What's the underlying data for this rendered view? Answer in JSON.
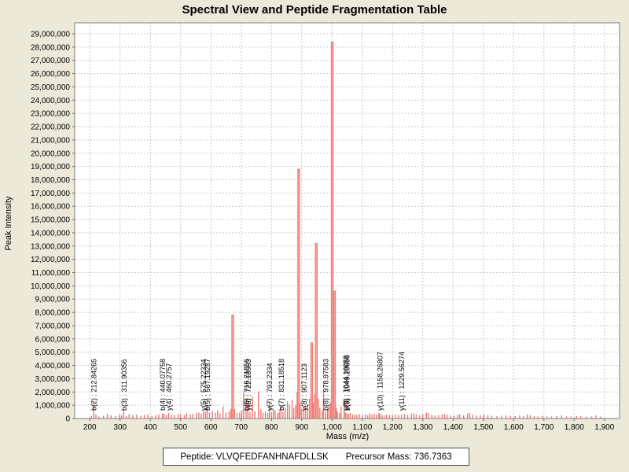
{
  "title": "Spectral View and Peptide Fragmentation Table",
  "footer": {
    "peptide": "Peptide: VLVQFEDFANHNAFDLLSK",
    "precursor": "Precursor Mass: 736.7363"
  },
  "chart_data": {
    "type": "bar",
    "title": "Spectral View and Peptide Fragmentation Table",
    "xlabel": "Mass (m/z)",
    "ylabel": "Peak Intensity",
    "xlim": [
      150,
      1950
    ],
    "ylim": [
      0,
      29830000
    ],
    "x_tick_min": 200,
    "x_tick_max": 1900,
    "x_tick_step": 100,
    "y_tick_min": 0,
    "y_tick_max": 29000000,
    "y_tick_step": 1000000,
    "grid": "dashed",
    "legend": "none",
    "colors": {
      "background": "#ece9d8",
      "plot_background": "#ffffff",
      "gridline": "#cccccc",
      "plot_border": "#808080",
      "peak": "#ee7068",
      "peak_big_fill": "#f6a29a",
      "tick": "#666666",
      "text": "#000000"
    },
    "annotations": [
      {
        "label": "b(2) : 212.84265",
        "mz": 212.84265
      },
      {
        "label": "b(3) : 311.90356",
        "mz": 311.90356
      },
      {
        "label": "b(4) : 440.07758",
        "mz": 440.07758
      },
      {
        "label": "y(4) : 460.2757",
        "mz": 460.2757
      },
      {
        "label": "y(5) : 575.22334",
        "mz": 575.22334
      },
      {
        "label": "b(5) : 587.19287",
        "mz": 587.19287
      },
      {
        "label": "b(6) : 716.21856",
        "mz": 716.21856
      },
      {
        "label": "y(6) : 722.18563",
        "mz": 722.18563
      },
      {
        "label": "y(7) : 793.2334",
        "mz": 793.2334
      },
      {
        "label": "b(7) : 831.18518",
        "mz": 831.18518
      },
      {
        "label": "y(8) : 907.1123",
        "mz": 907.1123
      },
      {
        "label": "b(8) : 978.97583",
        "mz": 978.97583
      },
      {
        "label": "y(9) : 1044.19058",
        "mz": 1044.19058
      },
      {
        "label": "b(9) : 1049.20656",
        "mz": 1049.20656
      },
      {
        "label": "y(10) : 1158.26807",
        "mz": 1158.26807
      },
      {
        "label": "y(11) : 1229.56274",
        "mz": 1229.56274
      }
    ],
    "peaks": [
      [
        205,
        200000
      ],
      [
        212.84265,
        1250000
      ],
      [
        220,
        300000
      ],
      [
        230,
        160000
      ],
      [
        245,
        210000
      ],
      [
        258,
        340000
      ],
      [
        270,
        240000
      ],
      [
        285,
        190000
      ],
      [
        298,
        290000
      ],
      [
        305,
        240000
      ],
      [
        311.90356,
        650000
      ],
      [
        320,
        200000
      ],
      [
        330,
        340000
      ],
      [
        342,
        240000
      ],
      [
        355,
        300000
      ],
      [
        368,
        210000
      ],
      [
        380,
        260000
      ],
      [
        392,
        300000
      ],
      [
        405,
        210000
      ],
      [
        418,
        260000
      ],
      [
        428,
        310000
      ],
      [
        440.07758,
        380000
      ],
      [
        445,
        330000
      ],
      [
        452,
        260000
      ],
      [
        460.2757,
        420000
      ],
      [
        470,
        290000
      ],
      [
        480,
        260000
      ],
      [
        492,
        340000
      ],
      [
        500,
        300000
      ],
      [
        512,
        260000
      ],
      [
        520,
        400000
      ],
      [
        532,
        310000
      ],
      [
        540,
        350000
      ],
      [
        552,
        400000
      ],
      [
        560,
        450000
      ],
      [
        568,
        360000
      ],
      [
        575.22334,
        550000
      ],
      [
        582,
        500000
      ],
      [
        587.19287,
        900000
      ],
      [
        595,
        460000
      ],
      [
        605,
        550000
      ],
      [
        615,
        420000
      ],
      [
        622,
        620000
      ],
      [
        630,
        400000
      ],
      [
        640,
        900000
      ],
      [
        650,
        450000
      ],
      [
        660,
        520000
      ],
      [
        666,
        700000
      ],
      [
        672,
        7800000
      ],
      [
        678,
        720000
      ],
      [
        686,
        420000
      ],
      [
        695,
        450000
      ],
      [
        702,
        600000
      ],
      [
        708,
        1950000
      ],
      [
        716.21856,
        1500000
      ],
      [
        722.18563,
        1100000
      ],
      [
        729,
        500000
      ],
      [
        737,
        1650000
      ],
      [
        745,
        550000
      ],
      [
        757,
        2050000
      ],
      [
        765,
        700000
      ],
      [
        772,
        450000
      ],
      [
        780,
        520000
      ],
      [
        788,
        420000
      ],
      [
        793.2334,
        1300000
      ],
      [
        800,
        470000
      ],
      [
        806,
        600000
      ],
      [
        812,
        640000
      ],
      [
        820,
        420000
      ],
      [
        826,
        520000
      ],
      [
        831.18518,
        950000
      ],
      [
        838,
        500000
      ],
      [
        845,
        820000
      ],
      [
        853,
        1300000
      ],
      [
        860,
        1050000
      ],
      [
        868,
        1400000
      ],
      [
        874,
        800000
      ],
      [
        880,
        1000000
      ],
      [
        885,
        2000000
      ],
      [
        890,
        18800000
      ],
      [
        895,
        1200000
      ],
      [
        900,
        720000
      ],
      [
        907.1123,
        800000
      ],
      [
        913,
        900000
      ],
      [
        920,
        1100000
      ],
      [
        926,
        1500000
      ],
      [
        933,
        5700000
      ],
      [
        938,
        1200000
      ],
      [
        943,
        1800000
      ],
      [
        948,
        13200000
      ],
      [
        955,
        1500000
      ],
      [
        960,
        820000
      ],
      [
        968,
        620000
      ],
      [
        972,
        2100000
      ],
      [
        978.97583,
        500000
      ],
      [
        985,
        700000
      ],
      [
        990,
        900000
      ],
      [
        995,
        1200000
      ],
      [
        1000.7,
        28400000
      ],
      [
        1005,
        1000000
      ],
      [
        1008.5,
        9600000
      ],
      [
        1014,
        800000
      ],
      [
        1018,
        520000
      ],
      [
        1025,
        420000
      ],
      [
        1030,
        900000
      ],
      [
        1040,
        1500000
      ],
      [
        1044.19058,
        450000
      ],
      [
        1049.20656,
        400000
      ],
      [
        1055,
        350000
      ],
      [
        1060,
        420000
      ],
      [
        1068,
        300000
      ],
      [
        1075,
        320000
      ],
      [
        1082,
        260000
      ],
      [
        1090,
        350000
      ],
      [
        1100,
        260000
      ],
      [
        1110,
        300000
      ],
      [
        1118,
        260000
      ],
      [
        1125,
        400000
      ],
      [
        1132,
        300000
      ],
      [
        1140,
        350000
      ],
      [
        1148,
        300000
      ],
      [
        1155,
        420000
      ],
      [
        1158.26807,
        350000
      ],
      [
        1165,
        260000
      ],
      [
        1172,
        240000
      ],
      [
        1180,
        300000
      ],
      [
        1190,
        260000
      ],
      [
        1200,
        240000
      ],
      [
        1210,
        300000
      ],
      [
        1220,
        260000
      ],
      [
        1229.56274,
        300000
      ],
      [
        1240,
        340000
      ],
      [
        1250,
        280000
      ],
      [
        1262,
        380000
      ],
      [
        1270,
        400000
      ],
      [
        1278,
        300000
      ],
      [
        1290,
        240000
      ],
      [
        1300,
        300000
      ],
      [
        1312,
        440000
      ],
      [
        1318,
        400000
      ],
      [
        1330,
        260000
      ],
      [
        1340,
        220000
      ],
      [
        1352,
        260000
      ],
      [
        1364,
        300000
      ],
      [
        1372,
        340000
      ],
      [
        1380,
        300000
      ],
      [
        1392,
        240000
      ],
      [
        1404,
        220000
      ],
      [
        1415,
        300000
      ],
      [
        1422,
        340000
      ],
      [
        1435,
        240000
      ],
      [
        1448,
        380000
      ],
      [
        1455,
        420000
      ],
      [
        1465,
        280000
      ],
      [
        1478,
        220000
      ],
      [
        1490,
        240000
      ],
      [
        1502,
        290000
      ],
      [
        1515,
        240000
      ],
      [
        1528,
        200000
      ],
      [
        1545,
        180000
      ],
      [
        1560,
        220000
      ],
      [
        1575,
        240000
      ],
      [
        1590,
        200000
      ],
      [
        1605,
        180000
      ],
      [
        1620,
        240000
      ],
      [
        1632,
        200000
      ],
      [
        1645,
        300000
      ],
      [
        1655,
        260000
      ],
      [
        1668,
        180000
      ],
      [
        1680,
        160000
      ],
      [
        1695,
        200000
      ],
      [
        1710,
        160000
      ],
      [
        1725,
        150000
      ],
      [
        1742,
        180000
      ],
      [
        1758,
        240000
      ],
      [
        1775,
        160000
      ],
      [
        1790,
        150000
      ],
      [
        1808,
        180000
      ],
      [
        1822,
        200000
      ],
      [
        1840,
        150000
      ],
      [
        1858,
        160000
      ],
      [
        1872,
        240000
      ],
      [
        1888,
        150000
      ]
    ]
  }
}
